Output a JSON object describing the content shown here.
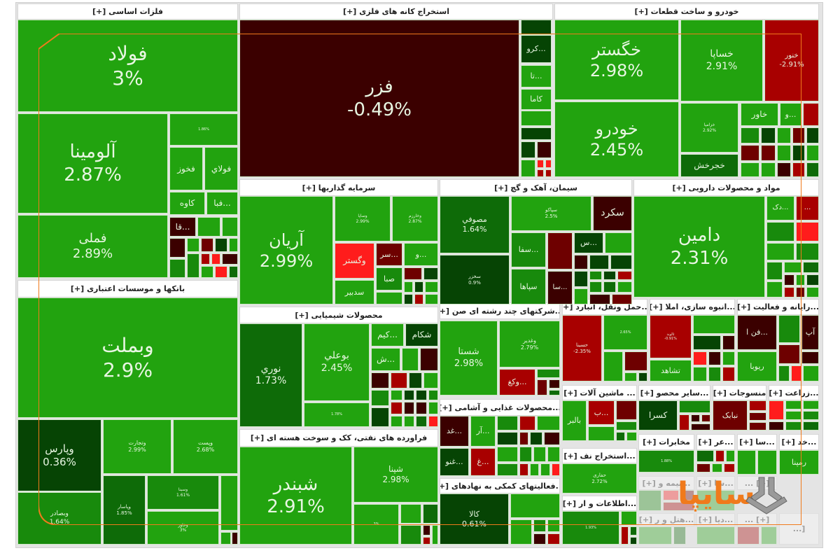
{
  "palette": {
    "g": "#22a30f",
    "m": "#188a0c",
    "d": "#0e6b08",
    "k": "#064404",
    "r": "#a80000",
    "R": "#ff1c1c",
    "x": "#3b0000",
    "y": "#6e0000",
    "accent": "#f07a1c"
  },
  "sectors": [
    {
      "title": "فلزات اساسی [+]",
      "stocks": [
        {
          "s": "فولاد",
          "p": "3%"
        },
        {
          "s": "آلومینا",
          "p": "2.87%"
        },
        {
          "s": "فملی",
          "p": "2.89%"
        },
        {
          "s": "",
          "p": "1.86%"
        },
        {
          "s": "فخوز"
        },
        {
          "s": "فولاي"
        },
        {
          "s": "کاوه"
        },
        {
          "s": "...فبا"
        },
        {
          "s": "...قا"
        }
      ]
    },
    {
      "title": "بانکها و موسسات اعتباری [+]",
      "stocks": [
        {
          "s": "وبملت",
          "p": "2.9%"
        },
        {
          "s": "وپارس",
          "p": "0.36%"
        },
        {
          "s": "وبصادر",
          "p": "1.64%"
        },
        {
          "s": "وتجارت",
          "p": "2.99%"
        },
        {
          "s": "وپست",
          "p": "2.68%"
        },
        {
          "s": "وپاسار",
          "p": "1.85%"
        },
        {
          "s": "وسینا",
          "p": "1.61%"
        },
        {
          "s": "وخاور",
          "p": "3%"
        }
      ]
    },
    {
      "title": "استخراج کانه های فلزی [+]",
      "stocks": [
        {
          "s": "فزر",
          "p": "-0.49%"
        },
        {
          "s": "...کرو"
        },
        {
          "s": "...تا"
        },
        {
          "s": "کاما"
        }
      ]
    },
    {
      "title": "خودرو و ساخت قطعات [+]",
      "stocks": [
        {
          "s": "خگستر",
          "p": "2.98%"
        },
        {
          "s": "خودرو",
          "p": "2.45%"
        },
        {
          "s": "خساپا",
          "p": "2.91%"
        },
        {
          "s": "خنور",
          "p": "-2.91%"
        },
        {
          "s": "خزامیا",
          "p": "2.92%"
        },
        {
          "s": "خجرخش"
        },
        {
          "s": "خاور"
        },
        {
          "s": "...و"
        }
      ]
    },
    {
      "title": "سرمایه گذاریها [+]",
      "stocks": [
        {
          "s": "آریان",
          "p": "2.99%"
        },
        {
          "s": "وساپا",
          "p": "2.99%"
        },
        {
          "s": "وخارزم",
          "p": "2.87%"
        },
        {
          "s": "وگستر"
        },
        {
          "s": "...سر"
        },
        {
          "s": "...و"
        },
        {
          "s": "صبا"
        },
        {
          "s": "سدبیر"
        }
      ]
    },
    {
      "title": "سیمان، آهک و گچ [+]",
      "stocks": [
        {
          "s": "مصوفي",
          "p": "1.64%"
        },
        {
          "s": "سخزر",
          "p": "0.9%"
        },
        {
          "s": "سپاکو",
          "p": "2.5%"
        },
        {
          "s": "سکرد"
        },
        {
          "s": "...سفا"
        },
        {
          "s": "سپاها"
        },
        {
          "s": "...سا"
        },
        {
          "s": "...س"
        }
      ]
    },
    {
      "title": "مواد و محصولات دارویی [+]",
      "stocks": [
        {
          "s": "دامین",
          "p": "2.31%"
        },
        {
          "s": "...دک"
        },
        {
          "s": "..."
        }
      ]
    },
    {
      "title": "محصولات شیمیایی [+]",
      "stocks": [
        {
          "s": "نوري",
          "p": "1.73%"
        },
        {
          "s": "بوعلي",
          "p": "2.45%"
        },
        {
          "s": "",
          "p": "1.78%"
        },
        {
          "s": "...کیم"
        },
        {
          "s": "شکام"
        },
        {
          "s": "...ش"
        }
      ]
    },
    {
      "title": "فراورده های نفتی، کک و سوخت هسته ای [+]",
      "stocks": [
        {
          "s": "شبندر",
          "p": "2.91%"
        },
        {
          "s": "شپنا",
          "p": "2.98%"
        },
        {
          "s": "",
          "p": "3%"
        }
      ]
    },
    {
      "title": "...شرکتهای چند رشته ای صن [+]",
      "stocks": [
        {
          "s": "شستا",
          "p": "2.98%"
        },
        {
          "s": "وغدیر",
          "p": "2.79%"
        },
        {
          "s": "...وکغ"
        }
      ]
    },
    {
      "title": "...محصولات غذایی و آشامی [+]",
      "stocks": [
        {
          "s": "...غد"
        },
        {
          "s": "...آر"
        },
        {
          "s": "...غنو"
        },
        {
          "s": "...غ"
        }
      ]
    },
    {
      "title": "...فعالیتهای کمکی به نهادهای [+]",
      "stocks": [
        {
          "s": "کالا",
          "p": "0.61%"
        }
      ]
    },
    {
      "title": "...حمل ونقل، انبارد [+]",
      "stocks": [
        {
          "s": "حسینا",
          "p": "-2.35%"
        },
        {
          "s": "",
          "p": "2.65%"
        }
      ]
    },
    {
      "title": "...انبوه سازی، املا [+]",
      "stocks": [
        {
          "s": "ثالوند",
          "p": "-0.91%"
        },
        {
          "s": "تشاهد"
        }
      ]
    },
    {
      "title": "...رایانه و فعالیت [+]",
      "stocks": [
        {
          "s": "...فن ا"
        },
        {
          "s": "ریوبا"
        },
        {
          "s": "آپ"
        }
      ]
    },
    {
      "title": "... ماشین آلات [+]",
      "stocks": [
        {
          "s": "بالبر"
        },
        {
          "s": "...ب"
        }
      ]
    },
    {
      "title": "...سایر محصو [+]",
      "stocks": [
        {
          "s": "کسرا"
        }
      ]
    },
    {
      "title": "منسوجات [+]",
      "stocks": [
        {
          "s": "نبابک"
        }
      ]
    },
    {
      "title": "...زراعت [+]",
      "stocks": []
    },
    {
      "title": "...استخراج نف [+]",
      "stocks": [
        {
          "s": "حفاری",
          "p": "2.72%"
        }
      ]
    },
    {
      "title": "مخابرات [+]",
      "stocks": [
        {
          "s": "",
          "p": "1.88%"
        }
      ]
    },
    {
      "title": "...عر [+]",
      "stocks": []
    },
    {
      "title": "...سا [+]",
      "stocks": []
    },
    {
      "title": "...خد [+]",
      "stocks": [
        {
          "s": "رمپنا"
        }
      ]
    },
    {
      "title": "...اطلاعات و ار [+]",
      "stocks": [
        {
          "s": "",
          "p": "1.93%"
        }
      ]
    },
    {
      "title": "...بیمه و [+]",
      "stocks": []
    },
    {
      "title": "...سا [+]",
      "stocks": []
    },
    {
      "title": "[+] ...",
      "stocks": []
    },
    {
      "title": "...هتل و ر [+]",
      "stocks": []
    },
    {
      "title": "...دیا [+]",
      "stocks": []
    },
    {
      "title": "[+] ...",
      "stocks": []
    },
    {
      "title": "[...",
      "stocks": []
    }
  ],
  "watermark": {
    "brand": "سایپا",
    "icon": "saipa-logo-icon"
  }
}
